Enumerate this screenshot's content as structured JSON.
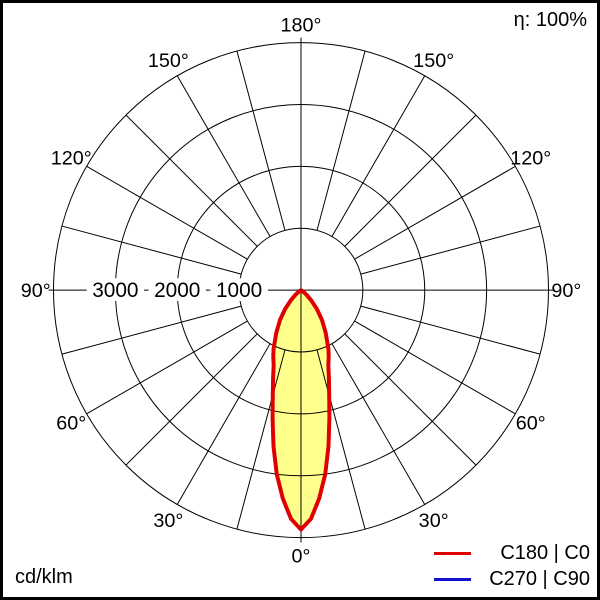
{
  "header": {
    "efficiency": "η: 100%"
  },
  "footer": {
    "units": "cd/klm"
  },
  "legend": {
    "items": [
      {
        "label": "C180 | C0",
        "color": "#e00000"
      },
      {
        "label": "C270 | C90",
        "color": "#1212cf"
      }
    ]
  },
  "chart_data": {
    "type": "line",
    "layout": "polar-photometric",
    "title": "",
    "units_label": "cd/klm",
    "efficiency_label": "η: 100%",
    "angle_label_step_deg": 30,
    "angle_grid_step_deg": 15,
    "angle_labels_deg": [
      0,
      30,
      60,
      90,
      120,
      150,
      180
    ],
    "radial_ticks": [
      1000,
      2000,
      3000
    ],
    "radial_max": 4000,
    "grid_color": "#000000",
    "legend_position": "bottom-right",
    "series": [
      {
        "name": "C180 | C0",
        "color": "#e00000",
        "fill": "#ffff8c",
        "gamma_deg": [
          0,
          2.5,
          5,
          7.5,
          10,
          12.5,
          15,
          17.5,
          20,
          22.5,
          25,
          30,
          35,
          40,
          45,
          50,
          55,
          60,
          65,
          90
        ],
        "cd_per_klm": [
          3870,
          3700,
          3380,
          3000,
          2560,
          2120,
          1760,
          1500,
          1290,
          1170,
          1050,
          800,
          590,
          400,
          230,
          110,
          40,
          10,
          0,
          0
        ]
      },
      {
        "name": "C270 | C90",
        "color": "#1212cf",
        "fill": null,
        "gamma_deg": [
          0,
          2.5,
          5,
          7.5,
          10,
          12.5,
          15,
          17.5,
          20,
          22.5,
          25,
          30,
          35,
          40,
          45,
          50,
          55,
          60,
          65,
          90
        ],
        "cd_per_klm": [
          3870,
          3700,
          3380,
          3000,
          2560,
          2120,
          1760,
          1500,
          1290,
          1170,
          1050,
          800,
          590,
          400,
          230,
          110,
          40,
          10,
          0,
          0
        ]
      }
    ]
  }
}
